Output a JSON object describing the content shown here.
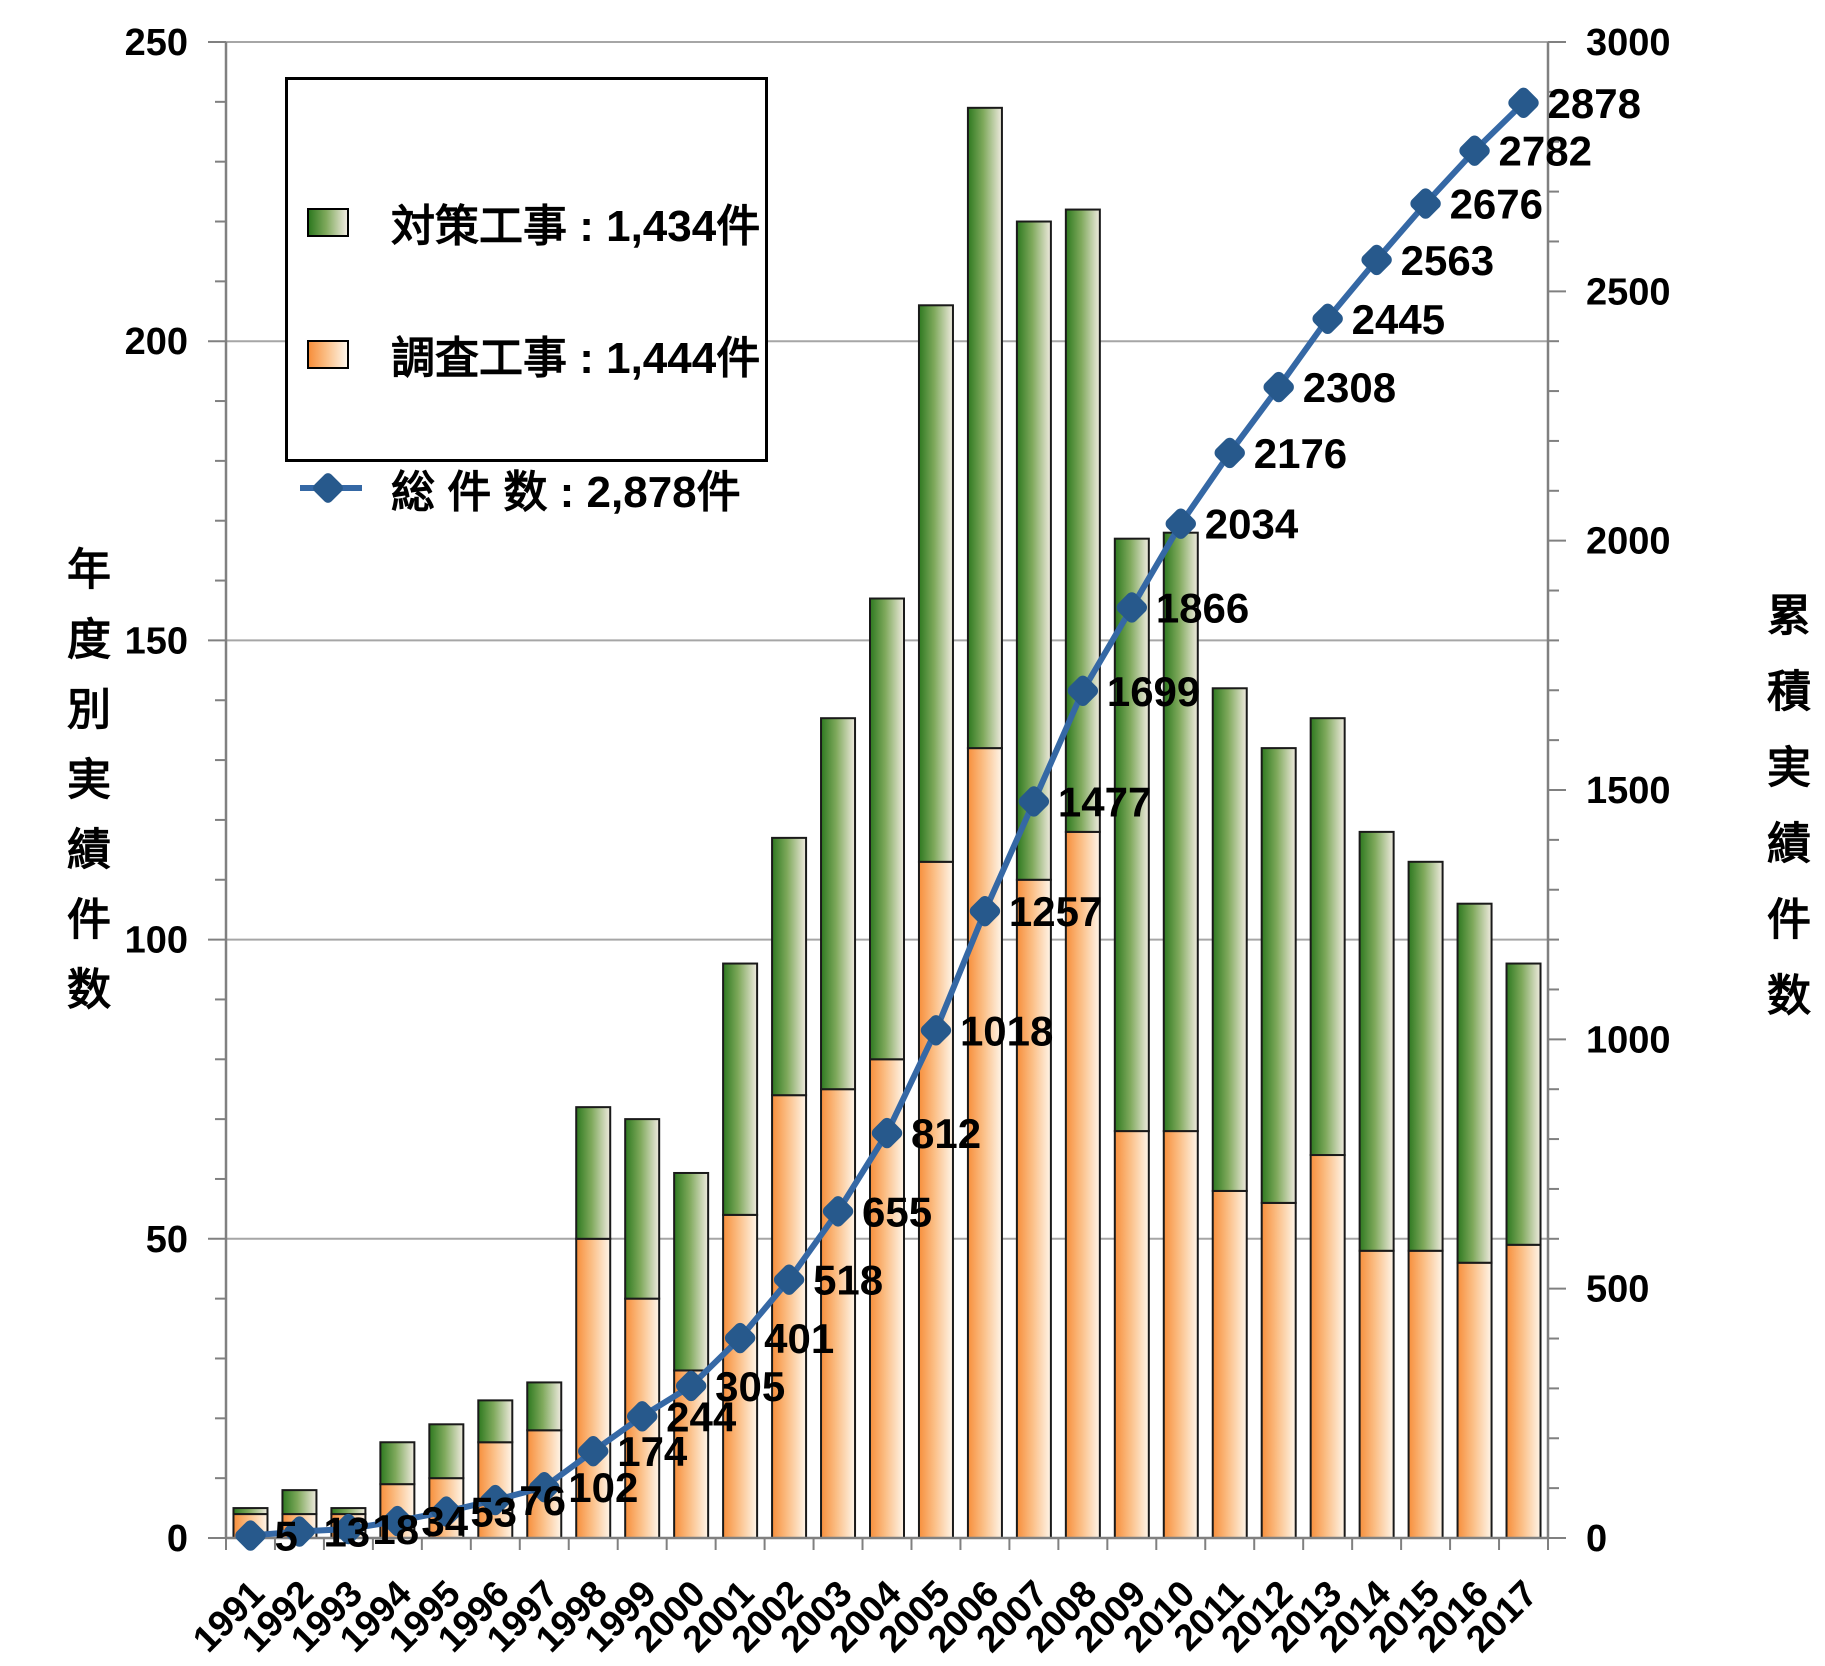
{
  "page": {
    "background": "#FFFFFF"
  },
  "legend": {
    "items": [
      {
        "name": "taisaku-kouji",
        "label": "対策工事 : 1,434件",
        "swatch": "green-gradient"
      },
      {
        "name": "chousa-kouji",
        "label": "調査工事 : 1,444件",
        "swatch": "orange-gradient"
      },
      {
        "name": "sou-kensuu",
        "label": "総 件 数 : 2,878件",
        "swatch": "line-marker"
      }
    ]
  },
  "chart_data": {
    "type": "bar",
    "subtype": "stacked-bars-with-cumulative-line",
    "categories": [
      "1991",
      "1992",
      "1993",
      "1994",
      "1995",
      "1996",
      "1997",
      "1998",
      "1999",
      "2000",
      "2001",
      "2002",
      "2003",
      "2004",
      "2005",
      "2006",
      "2007",
      "2008",
      "2009",
      "2010",
      "2011",
      "2012",
      "2013",
      "2014",
      "2015",
      "2016",
      "2017"
    ],
    "series": [
      {
        "name": "調査工事",
        "role": "bar-lower",
        "total": 1444,
        "values": [
          4,
          4,
          4,
          9,
          10,
          16,
          18,
          50,
          40,
          28,
          54,
          74,
          75,
          80,
          113,
          132,
          110,
          118,
          68,
          68,
          58,
          56,
          64,
          48,
          48,
          46,
          49
        ]
      },
      {
        "name": "対策工事",
        "role": "bar-upper",
        "total": 1434,
        "values": [
          1,
          4,
          1,
          7,
          9,
          7,
          8,
          22,
          30,
          33,
          42,
          43,
          62,
          77,
          93,
          107,
          110,
          104,
          99,
          100,
          84,
          76,
          73,
          70,
          65,
          60,
          47
        ]
      }
    ],
    "line_series": {
      "name": "総件数",
      "total": 2878,
      "values": [
        5,
        13,
        18,
        34,
        53,
        76,
        102,
        174,
        244,
        305,
        401,
        518,
        655,
        812,
        1018,
        1257,
        1477,
        1699,
        1866,
        2034,
        2176,
        2308,
        2445,
        2563,
        2676,
        2782,
        2878
      ]
    },
    "left_axis": {
      "label": "年度別実績件数",
      "min": 0,
      "max": 250,
      "major_step": 50,
      "minor_step": 10,
      "ticks": [
        "0",
        "50",
        "100",
        "150",
        "200",
        "250"
      ]
    },
    "right_axis": {
      "label": "累積実績件数",
      "min": 0,
      "max": 3000,
      "major_step": 500,
      "minor_step": 100,
      "ticks": [
        "0",
        "500",
        "1000",
        "1500",
        "2000",
        "2500",
        "3000"
      ]
    },
    "grid": "horizontal-lines-at-left-axis-majors",
    "legend_position": "inside-top-left",
    "colors": {
      "bar_research_start": "#F78F3C",
      "bar_research_mid": "#FBBE85",
      "bar_research_end": "#FEF5E9",
      "bar_countermeasure_start": "#2E7920",
      "bar_countermeasure_mid": "#7FA95C",
      "bar_countermeasure_end": "#EFEADF",
      "bar_border": "#1A1A1A",
      "line": "#3568A5",
      "marker": "#27598C",
      "grid_line": "#A6A6A6",
      "axis_line": "#808080",
      "text": "#000000"
    }
  }
}
